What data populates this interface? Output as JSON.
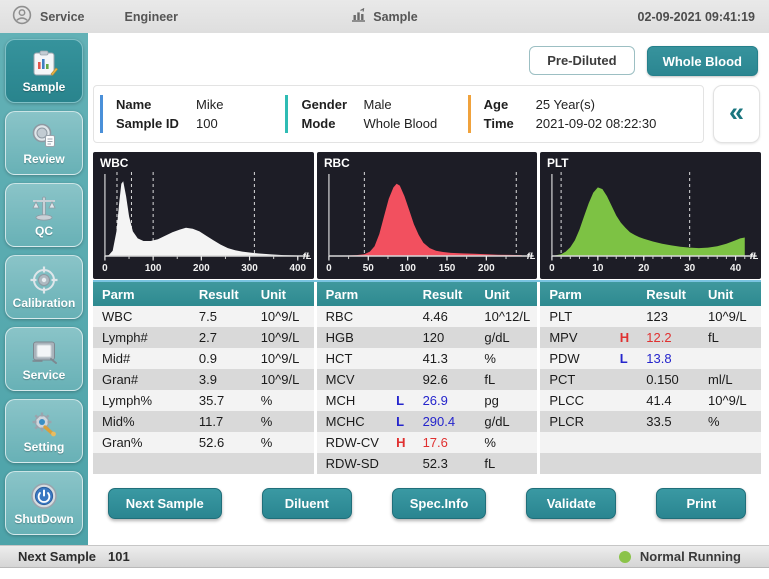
{
  "titlebar": {
    "menu_service": "Service",
    "menu_engineer": "Engineer",
    "screen_title": "Sample",
    "datetime": "02-09-2021 09:41:19"
  },
  "sidebar": {
    "items": [
      {
        "label": "Sample",
        "icon": "sample-chart-icon",
        "active": true
      },
      {
        "label": "Review",
        "icon": "review-magnifier-icon",
        "active": false
      },
      {
        "label": "QC",
        "icon": "qc-balance-icon",
        "active": false
      },
      {
        "label": "Calibration",
        "icon": "calibration-target-icon",
        "active": false
      },
      {
        "label": "Service",
        "icon": "service-device-icon",
        "active": false
      },
      {
        "label": "Setting",
        "icon": "setting-gear-icon",
        "active": false
      },
      {
        "label": "ShutDown",
        "icon": "shutdown-power-icon",
        "active": false
      }
    ]
  },
  "mode_buttons": {
    "pre_diluted": "Pre-Diluted",
    "whole_blood": "Whole Blood"
  },
  "patient": {
    "fields": [
      {
        "label": "Name",
        "value": "Mike"
      },
      {
        "label": "Sample ID",
        "value": "100"
      },
      {
        "label": "Gender",
        "value": "Male"
      },
      {
        "label": "Mode",
        "value": "Whole Blood"
      },
      {
        "label": "Age",
        "value": "25 Year(s)"
      },
      {
        "label": "Time",
        "value": "2021-09-02 08:22:30"
      }
    ],
    "group_colors": [
      "#4a90d9",
      "#2fbcb4",
      "#f0a23c"
    ],
    "collapse_glyph": "«"
  },
  "chart_data": [
    {
      "type": "area",
      "title": "WBC",
      "x_unit": "fL",
      "xmax": 400,
      "x_ticks": [
        0,
        100,
        200,
        300,
        400
      ],
      "minor_step": 50,
      "dashed_lines": [
        25,
        55,
        100,
        310
      ],
      "fill_color": "#f4f4f4",
      "curve": [
        [
          0,
          0
        ],
        [
          8,
          0.01
        ],
        [
          16,
          0.06
        ],
        [
          24,
          0.28
        ],
        [
          30,
          0.62
        ],
        [
          34,
          0.82
        ],
        [
          38,
          0.85
        ],
        [
          44,
          0.68
        ],
        [
          50,
          0.45
        ],
        [
          58,
          0.28
        ],
        [
          68,
          0.2
        ],
        [
          80,
          0.17
        ],
        [
          95,
          0.17
        ],
        [
          110,
          0.19
        ],
        [
          125,
          0.23
        ],
        [
          140,
          0.27
        ],
        [
          155,
          0.3
        ],
        [
          168,
          0.32
        ],
        [
          182,
          0.31
        ],
        [
          196,
          0.28
        ],
        [
          210,
          0.23
        ],
        [
          225,
          0.18
        ],
        [
          240,
          0.13
        ],
        [
          255,
          0.09
        ],
        [
          270,
          0.065
        ],
        [
          285,
          0.05
        ],
        [
          300,
          0.04
        ],
        [
          320,
          0.028
        ],
        [
          345,
          0.018
        ],
        [
          370,
          0.01
        ],
        [
          400,
          0.006
        ]
      ]
    },
    {
      "type": "area",
      "title": "RBC",
      "x_unit": "fL",
      "xmax": 245,
      "x_ticks": [
        0,
        50,
        100,
        150,
        200
      ],
      "minor_step": 25,
      "dashed_lines": [
        45,
        238
      ],
      "fill_color": "#f2505f",
      "curve": [
        [
          0,
          0
        ],
        [
          20,
          0.004
        ],
        [
          35,
          0.01
        ],
        [
          45,
          0.02
        ],
        [
          52,
          0.05
        ],
        [
          58,
          0.11
        ],
        [
          64,
          0.25
        ],
        [
          70,
          0.45
        ],
        [
          76,
          0.65
        ],
        [
          82,
          0.78
        ],
        [
          86,
          0.82
        ],
        [
          90,
          0.8
        ],
        [
          96,
          0.68
        ],
        [
          102,
          0.52
        ],
        [
          108,
          0.36
        ],
        [
          114,
          0.24
        ],
        [
          120,
          0.15
        ],
        [
          128,
          0.09
        ],
        [
          136,
          0.06
        ],
        [
          145,
          0.045
        ],
        [
          155,
          0.035
        ],
        [
          170,
          0.03
        ],
        [
          185,
          0.025
        ],
        [
          200,
          0.02
        ],
        [
          215,
          0.015
        ],
        [
          230,
          0.012
        ],
        [
          245,
          0.01
        ]
      ]
    },
    {
      "type": "area",
      "title": "PLT",
      "x_unit": "fL",
      "xmax": 42,
      "x_ticks": [
        0,
        10,
        20,
        30,
        40
      ],
      "minor_step": 2,
      "dashed_lines": [
        2,
        30
      ],
      "fill_color": "#7dc244",
      "curve": [
        [
          0,
          0
        ],
        [
          1,
          0.01
        ],
        [
          2,
          0.02
        ],
        [
          3,
          0.05
        ],
        [
          4,
          0.1
        ],
        [
          5,
          0.18
        ],
        [
          6,
          0.3
        ],
        [
          7,
          0.45
        ],
        [
          8,
          0.6
        ],
        [
          9,
          0.72
        ],
        [
          10,
          0.78
        ],
        [
          11,
          0.76
        ],
        [
          12,
          0.68
        ],
        [
          13,
          0.57
        ],
        [
          14,
          0.46
        ],
        [
          15,
          0.38
        ],
        [
          16,
          0.32
        ],
        [
          17,
          0.27
        ],
        [
          18,
          0.24
        ],
        [
          19,
          0.215
        ],
        [
          20,
          0.195
        ],
        [
          22,
          0.165
        ],
        [
          24,
          0.14
        ],
        [
          26,
          0.12
        ],
        [
          28,
          0.105
        ],
        [
          30,
          0.095
        ],
        [
          32,
          0.09
        ],
        [
          34,
          0.095
        ],
        [
          36,
          0.11
        ],
        [
          38,
          0.14
        ],
        [
          40,
          0.18
        ],
        [
          41,
          0.2
        ],
        [
          42,
          0.21
        ]
      ]
    }
  ],
  "tables": [
    {
      "headers": [
        "Parm",
        "Result",
        "Unit"
      ],
      "rows": [
        {
          "parm": "WBC",
          "flag": "",
          "result": "7.5",
          "unit": "10^9/L"
        },
        {
          "parm": "Lymph#",
          "flag": "",
          "result": "2.7",
          "unit": "10^9/L"
        },
        {
          "parm": "Mid#",
          "flag": "",
          "result": "0.9",
          "unit": "10^9/L"
        },
        {
          "parm": "Gran#",
          "flag": "",
          "result": "3.9",
          "unit": "10^9/L"
        },
        {
          "parm": "Lymph%",
          "flag": "",
          "result": "35.7",
          "unit": "%"
        },
        {
          "parm": "Mid%",
          "flag": "",
          "result": "11.7",
          "unit": "%"
        },
        {
          "parm": "Gran%",
          "flag": "",
          "result": "52.6",
          "unit": "%"
        },
        {
          "parm": "",
          "flag": "",
          "result": "",
          "unit": ""
        }
      ]
    },
    {
      "headers": [
        "Parm",
        "Result",
        "Unit"
      ],
      "rows": [
        {
          "parm": "RBC",
          "flag": "",
          "result": "4.46",
          "unit": "10^12/L"
        },
        {
          "parm": "HGB",
          "flag": "",
          "result": "120",
          "unit": "g/dL"
        },
        {
          "parm": "HCT",
          "flag": "",
          "result": "41.3",
          "unit": "%"
        },
        {
          "parm": "MCV",
          "flag": "",
          "result": "92.6",
          "unit": "fL"
        },
        {
          "parm": "MCH",
          "flag": "L",
          "result": "26.9",
          "unit": "pg"
        },
        {
          "parm": "MCHC",
          "flag": "L",
          "result": "290.4",
          "unit": "g/dL"
        },
        {
          "parm": "RDW-CV",
          "flag": "H",
          "result": "17.6",
          "unit": "%"
        },
        {
          "parm": "RDW-SD",
          "flag": "",
          "result": "52.3",
          "unit": "fL"
        }
      ]
    },
    {
      "headers": [
        "Parm",
        "Result",
        "Unit"
      ],
      "rows": [
        {
          "parm": "PLT",
          "flag": "",
          "result": "123",
          "unit": "10^9/L"
        },
        {
          "parm": "MPV",
          "flag": "H",
          "result": "12.2",
          "unit": "fL"
        },
        {
          "parm": "PDW",
          "flag": "L",
          "result": "13.8",
          "unit": ""
        },
        {
          "parm": "PCT",
          "flag": "",
          "result": "0.150",
          "unit": "ml/L"
        },
        {
          "parm": "PLCC",
          "flag": "",
          "result": "41.4",
          "unit": "10^9/L"
        },
        {
          "parm": "PLCR",
          "flag": "",
          "result": "33.5",
          "unit": "%"
        },
        {
          "parm": "",
          "flag": "",
          "result": "",
          "unit": ""
        },
        {
          "parm": "",
          "flag": "",
          "result": "",
          "unit": ""
        }
      ]
    }
  ],
  "flag_colors": {
    "H": "#e03030",
    "L": "#2525cc"
  },
  "action_buttons": [
    "Next Sample",
    "Diluent",
    "Spec.Info",
    "Validate",
    "Print"
  ],
  "statusbar": {
    "next_sample_label": "Next Sample",
    "next_sample_value": "101",
    "status_text": "Normal Running",
    "status_color": "#8bc34a"
  }
}
